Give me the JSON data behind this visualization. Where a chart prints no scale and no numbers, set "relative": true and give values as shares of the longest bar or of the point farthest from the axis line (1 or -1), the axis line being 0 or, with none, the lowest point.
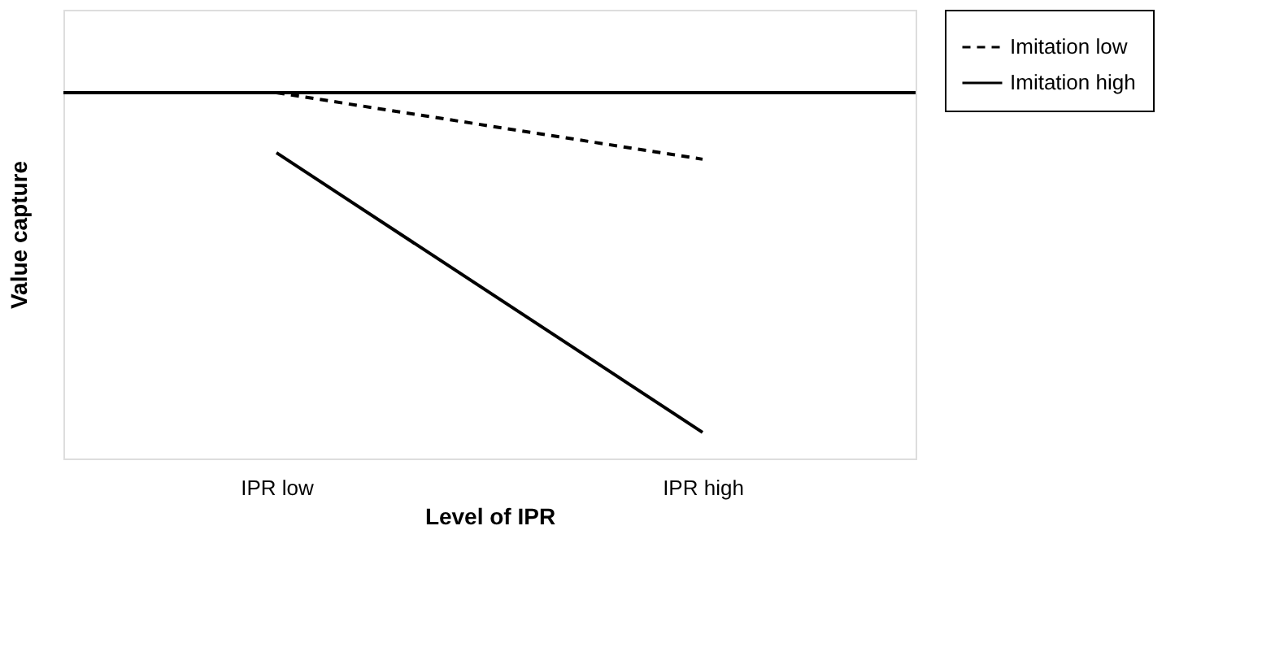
{
  "chart_data": {
    "type": "line",
    "relative": true,
    "xlabel": "Level of IPR",
    "ylabel": "Value capture",
    "categories": [
      "IPR low",
      "IPR high"
    ],
    "series": [
      {
        "name": "Imitation low",
        "color": "#000000",
        "line_style": "dashed",
        "values": [
          0,
          -0.196
        ]
      },
      {
        "name": "Imitation high",
        "color": "#000000",
        "line_style": "solid",
        "values": [
          -0.177,
          -1
        ]
      }
    ],
    "legend": "right",
    "grid": false,
    "marker": "none"
  }
}
